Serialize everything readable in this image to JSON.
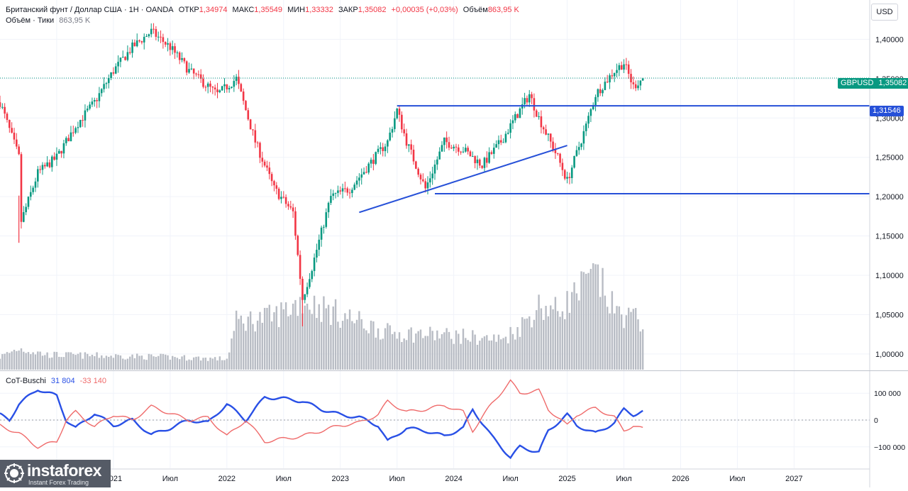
{
  "header": {
    "symbol": "Британский фунт / Доллар США · 1Н · OANDA",
    "open_label": "ОТКР",
    "open": "1,34974",
    "high_label": "МАКС",
    "high": "1,35549",
    "low_label": "МИН",
    "low": "1,33332",
    "close_label": "ЗАКР",
    "close": "1,35082",
    "change": "+0,00035 (+0,03%)",
    "volume_label": "Объём",
    "volume": "863,95 K",
    "volume_line": "Объём · Тики",
    "volume_line_value": "863,95 K"
  },
  "currency": "USD",
  "price_tags": {
    "symbol": "GBPUSD",
    "last": "1,35082",
    "level": "1,31546"
  },
  "indicator": {
    "name": "CoT-Buschi",
    "value_blue": "31 804",
    "value_red": "-33 140"
  },
  "logo": {
    "name": "instaforex",
    "tagline": "Instant Forex Trading"
  },
  "colors": {
    "up": "#089981",
    "down": "#f23645",
    "level_line": "#2650d8",
    "cot_blue": "#2950e6",
    "cot_red": "#ef6a6a",
    "volume": "#b8bcc4",
    "logo_bg": "#555b66"
  },
  "chart_data": [
    {
      "type": "candlestick",
      "title": "",
      "symbol": "GBPUSD",
      "timeframe": "1Н",
      "x_start": "2020-01",
      "x_end": "2027-09",
      "x_tick_labels": [
        {
          "date": "2020-07",
          "label": "Июл"
        },
        {
          "date": "2021-01",
          "label": "2021"
        },
        {
          "date": "2021-07",
          "label": "Июл"
        },
        {
          "date": "2022-01",
          "label": "2022"
        },
        {
          "date": "2022-07",
          "label": "Июл"
        },
        {
          "date": "2023-01",
          "label": "2023"
        },
        {
          "date": "2023-07",
          "label": "Июл"
        },
        {
          "date": "2024-01",
          "label": "2024"
        },
        {
          "date": "2024-07",
          "label": "Июл"
        },
        {
          "date": "2025-01",
          "label": "2025"
        },
        {
          "date": "2025-07",
          "label": "Июл"
        },
        {
          "date": "2026-01",
          "label": "2026"
        },
        {
          "date": "2026-07",
          "label": "Июл"
        },
        {
          "date": "2027-01",
          "label": "2027"
        }
      ],
      "y_ticks": [
        1.0,
        1.05,
        1.1,
        1.15,
        1.2,
        1.25,
        1.3,
        1.35,
        1.4
      ],
      "y_tick_labels": [
        "1,00000",
        "1,05000",
        "1,10000",
        "1,15000",
        "1,20000",
        "1,25000",
        "1,30000",
        "1,35000",
        "1,40000"
      ],
      "ylim": [
        0.98,
        1.45
      ],
      "price_path": [
        [
          "2020-01",
          1.32
        ],
        [
          "2020-03",
          1.25
        ],
        [
          "2020-03",
          1.16
        ],
        [
          "2020-05",
          1.23
        ],
        [
          "2020-07",
          1.25
        ],
        [
          "2020-09",
          1.29
        ],
        [
          "2020-11",
          1.32
        ],
        [
          "2021-01",
          1.36
        ],
        [
          "2021-03",
          1.39
        ],
        [
          "2021-05",
          1.41
        ],
        [
          "2021-07",
          1.39
        ],
        [
          "2021-09",
          1.36
        ],
        [
          "2021-12",
          1.33
        ],
        [
          "2022-02",
          1.35
        ],
        [
          "2022-04",
          1.27
        ],
        [
          "2022-06",
          1.21
        ],
        [
          "2022-08",
          1.18
        ],
        [
          "2022-09",
          1.07
        ],
        [
          "2022-10",
          1.11
        ],
        [
          "2022-12",
          1.2
        ],
        [
          "2023-02",
          1.21
        ],
        [
          "2023-04",
          1.24
        ],
        [
          "2023-06",
          1.27
        ],
        [
          "2023-07",
          1.31
        ],
        [
          "2023-08",
          1.27
        ],
        [
          "2023-10",
          1.21
        ],
        [
          "2023-12",
          1.27
        ],
        [
          "2024-02",
          1.26
        ],
        [
          "2024-04",
          1.24
        ],
        [
          "2024-06",
          1.27
        ],
        [
          "2024-08",
          1.31
        ],
        [
          "2024-09",
          1.33
        ],
        [
          "2024-10",
          1.3
        ],
        [
          "2024-12",
          1.25
        ],
        [
          "2025-01",
          1.22
        ],
        [
          "2025-03",
          1.29
        ],
        [
          "2025-04",
          1.33
        ],
        [
          "2025-06",
          1.36
        ],
        [
          "2025-07",
          1.37
        ],
        [
          "2025-08",
          1.34
        ],
        [
          "2025-09",
          1.35082
        ]
      ],
      "low_points": [
        {
          "date": "2020-03",
          "low": 1.1413
        },
        {
          "date": "2022-09",
          "low": 1.0351
        }
      ],
      "horizontal_levels": [
        {
          "price": 1.31546,
          "from": "2023-07",
          "label": "1,31546"
        },
        {
          "price": 1.2037,
          "from": "2023-11"
        }
      ],
      "trend_line": {
        "from": [
          "2023-03",
          1.18
        ],
        "to": [
          "2025-01",
          1.265
        ]
      },
      "last_price": 1.35082,
      "volume_relative": [
        [
          "2020-01",
          0.12
        ],
        [
          "2020-03",
          0.2
        ],
        [
          "2020-06",
          0.14
        ],
        [
          "2021-06",
          0.12
        ],
        [
          "2022-01",
          0.1
        ],
        [
          "2022-02",
          0.45
        ],
        [
          "2022-06",
          0.5
        ],
        [
          "2022-09",
          0.65
        ],
        [
          "2022-12",
          0.55
        ],
        [
          "2023-06",
          0.35
        ],
        [
          "2024-01",
          0.32
        ],
        [
          "2024-06",
          0.28
        ],
        [
          "2024-08",
          0.4
        ],
        [
          "2024-10",
          0.6
        ],
        [
          "2024-12",
          0.55
        ],
        [
          "2025-03",
          0.8
        ],
        [
          "2025-04",
          0.9
        ],
        [
          "2025-06",
          0.55
        ],
        [
          "2025-09",
          0.45
        ]
      ]
    },
    {
      "type": "line",
      "title": "CoT-Buschi",
      "y_ticks": [
        -100000,
        0,
        100000
      ],
      "y_tick_labels": [
        "−100 000",
        "0",
        "100 000"
      ],
      "ylim": [
        -180000,
        180000
      ],
      "series": [
        {
          "name": "",
          "color": "#2950e6",
          "points": [
            [
              "2020-01",
              20000
            ],
            [
              "2020-02",
              0
            ],
            [
              "2020-03",
              60000
            ],
            [
              "2020-05",
              115000
            ],
            [
              "2020-07",
              90000
            ],
            [
              "2020-08",
              0
            ],
            [
              "2020-09",
              -30000
            ],
            [
              "2020-11",
              25000
            ],
            [
              "2021-01",
              -20000
            ],
            [
              "2021-03",
              0
            ],
            [
              "2021-05",
              -55000
            ],
            [
              "2021-07",
              -30000
            ],
            [
              "2021-09",
              0
            ],
            [
              "2021-11",
              -10000
            ],
            [
              "2022-01",
              60000
            ],
            [
              "2022-03",
              0
            ],
            [
              "2022-05",
              85000
            ],
            [
              "2022-07",
              80000
            ],
            [
              "2022-09",
              70000
            ],
            [
              "2022-11",
              40000
            ],
            [
              "2023-01",
              20000
            ],
            [
              "2023-03",
              10000
            ],
            [
              "2023-05",
              -20000
            ],
            [
              "2023-06",
              -80000
            ],
            [
              "2023-08",
              -30000
            ],
            [
              "2023-10",
              -40000
            ],
            [
              "2023-12",
              -60000
            ],
            [
              "2024-02",
              -30000
            ],
            [
              "2024-03",
              40000
            ],
            [
              "2024-05",
              -60000
            ],
            [
              "2024-07",
              -140000
            ],
            [
              "2024-08",
              -100000
            ],
            [
              "2024-10",
              -120000
            ],
            [
              "2024-11",
              -40000
            ],
            [
              "2025-01",
              20000
            ],
            [
              "2025-02",
              -20000
            ],
            [
              "2025-04",
              -50000
            ],
            [
              "2025-06",
              -10000
            ],
            [
              "2025-07",
              40000
            ],
            [
              "2025-08",
              20000
            ],
            [
              "2025-09",
              31804
            ]
          ]
        },
        {
          "name": "",
          "color": "#ef6a6a",
          "points": [
            [
              "2020-01",
              -20000
            ],
            [
              "2020-03",
              -50000
            ],
            [
              "2020-05",
              -100000
            ],
            [
              "2020-07",
              -80000
            ],
            [
              "2020-08",
              0
            ],
            [
              "2020-09",
              30000
            ],
            [
              "2020-11",
              -25000
            ],
            [
              "2021-01",
              20000
            ],
            [
              "2021-03",
              0
            ],
            [
              "2021-05",
              50000
            ],
            [
              "2021-07",
              25000
            ],
            [
              "2021-09",
              0
            ],
            [
              "2021-11",
              10000
            ],
            [
              "2022-01",
              -60000
            ],
            [
              "2022-03",
              0
            ],
            [
              "2022-05",
              -80000
            ],
            [
              "2022-07",
              -70000
            ],
            [
              "2022-09",
              -60000
            ],
            [
              "2022-11",
              -40000
            ],
            [
              "2023-01",
              -20000
            ],
            [
              "2023-03",
              -10000
            ],
            [
              "2023-05",
              20000
            ],
            [
              "2023-06",
              70000
            ],
            [
              "2023-08",
              30000
            ],
            [
              "2023-10",
              40000
            ],
            [
              "2023-12",
              55000
            ],
            [
              "2024-02",
              30000
            ],
            [
              "2024-03",
              -40000
            ],
            [
              "2024-05",
              60000
            ],
            [
              "2024-07",
              145000
            ],
            [
              "2024-08",
              100000
            ],
            [
              "2024-10",
              110000
            ],
            [
              "2024-11",
              40000
            ],
            [
              "2025-01",
              -20000
            ],
            [
              "2025-02",
              20000
            ],
            [
              "2025-04",
              45000
            ],
            [
              "2025-06",
              10000
            ],
            [
              "2025-07",
              -40000
            ],
            [
              "2025-08",
              -20000
            ],
            [
              "2025-09",
              -33140
            ]
          ]
        }
      ]
    }
  ]
}
